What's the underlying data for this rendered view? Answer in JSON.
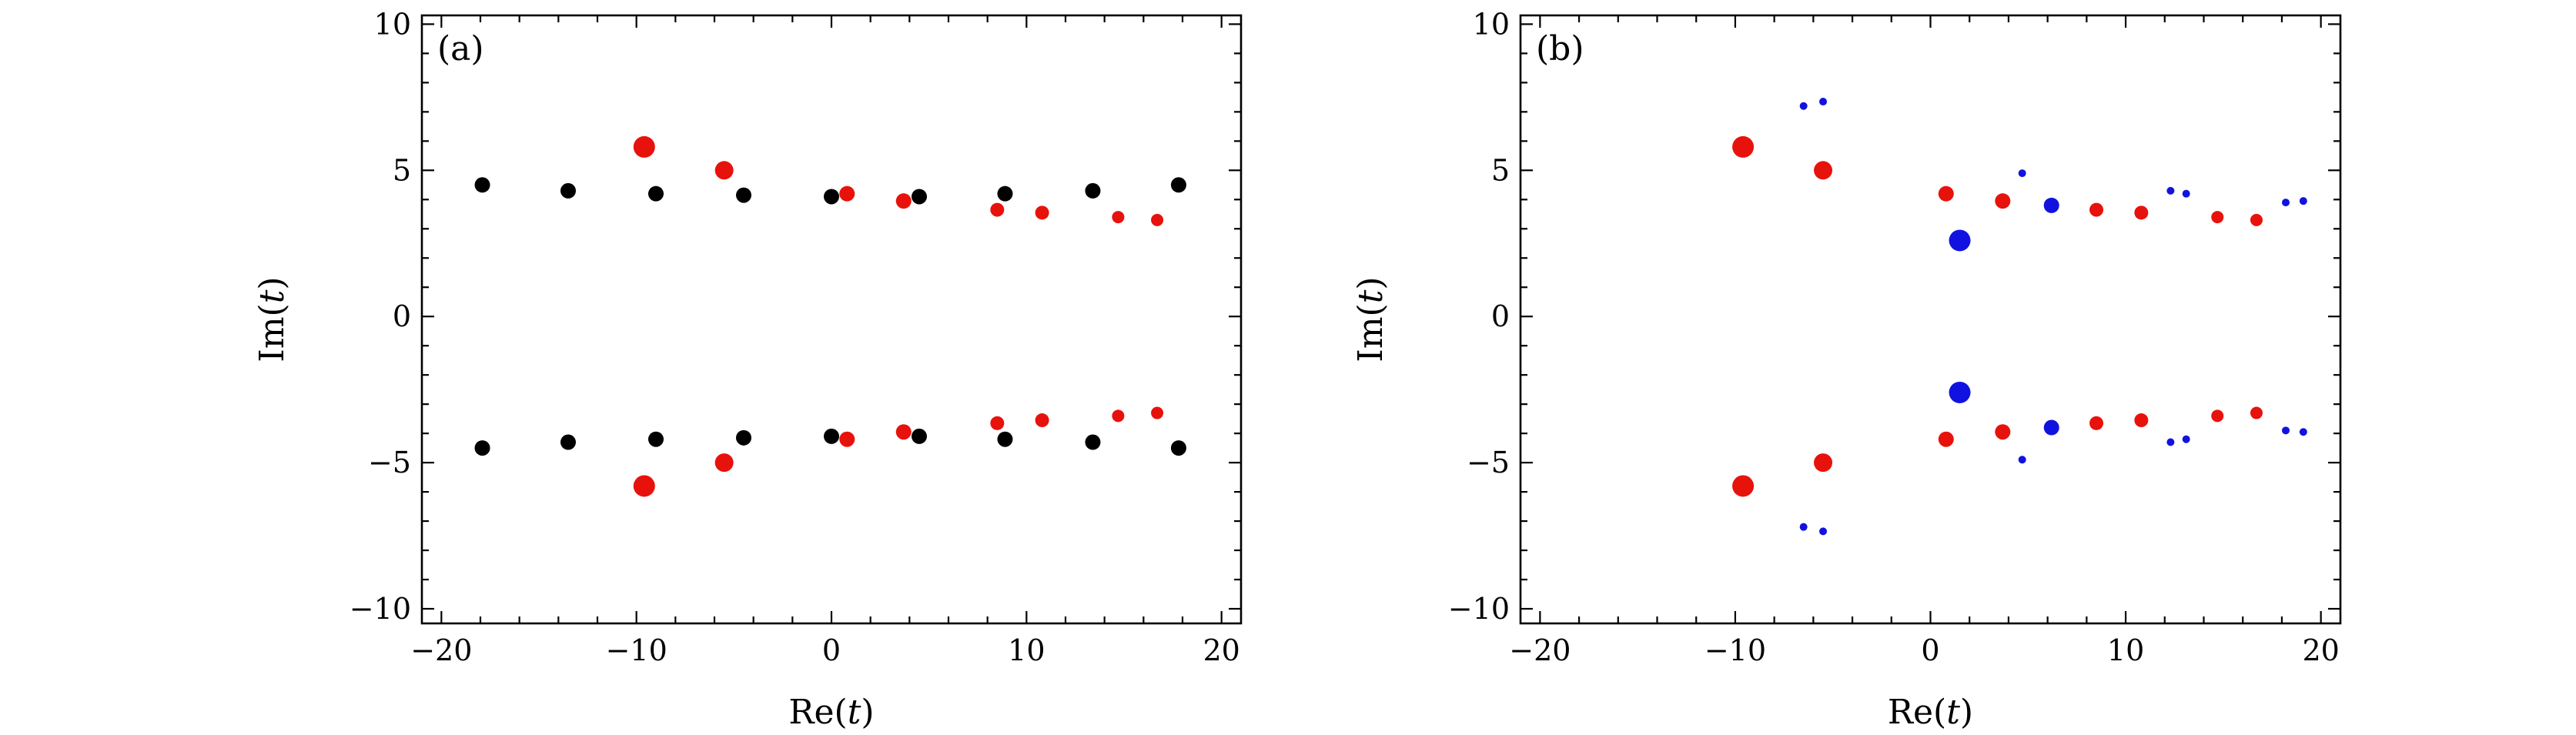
{
  "chart_data": [
    {
      "type": "scatter",
      "panel_label": "(a)",
      "xlabel": "Re(t)",
      "ylabel": "Im(t)",
      "xlim": [
        -21,
        21
      ],
      "ylim": [
        -10.5,
        10.3
      ],
      "xticks": [
        -20,
        -10,
        0,
        10,
        20
      ],
      "yticks": [
        -10,
        -5,
        0,
        5,
        10
      ],
      "xtick_labels": [
        "−20",
        "−10",
        "0",
        "10",
        "20"
      ],
      "ytick_labels": [
        "−10",
        "−5",
        "0",
        "5",
        "10"
      ],
      "grid": false,
      "series": [
        {
          "color": "#000000",
          "points": [
            {
              "x": -17.9,
              "y": 4.5,
              "size": "medium"
            },
            {
              "x": -13.5,
              "y": 4.3,
              "size": "medium"
            },
            {
              "x": -9.0,
              "y": 4.2,
              "size": "medium"
            },
            {
              "x": -4.5,
              "y": 4.15,
              "size": "medium"
            },
            {
              "x": 0.0,
              "y": 4.1,
              "size": "medium"
            },
            {
              "x": 4.5,
              "y": 4.1,
              "size": "medium"
            },
            {
              "x": 8.9,
              "y": 4.2,
              "size": "medium"
            },
            {
              "x": 13.4,
              "y": 4.3,
              "size": "medium"
            },
            {
              "x": 17.8,
              "y": 4.5,
              "size": "medium"
            },
            {
              "x": -17.9,
              "y": -4.5,
              "size": "medium"
            },
            {
              "x": -13.5,
              "y": -4.3,
              "size": "medium"
            },
            {
              "x": -9.0,
              "y": -4.2,
              "size": "medium"
            },
            {
              "x": -4.5,
              "y": -4.15,
              "size": "medium"
            },
            {
              "x": 0.0,
              "y": -4.1,
              "size": "medium"
            },
            {
              "x": 4.5,
              "y": -4.1,
              "size": "medium"
            },
            {
              "x": 8.9,
              "y": -4.2,
              "size": "medium"
            },
            {
              "x": 13.4,
              "y": -4.3,
              "size": "medium"
            },
            {
              "x": 17.8,
              "y": -4.5,
              "size": "medium"
            }
          ]
        },
        {
          "color": "#e8120c",
          "points": [
            {
              "x": -9.6,
              "y": 5.8,
              "size": "large"
            },
            {
              "x": -5.5,
              "y": 5.0,
              "size": "medium-large"
            },
            {
              "x": 0.8,
              "y": 4.2,
              "size": "medium"
            },
            {
              "x": 3.7,
              "y": 3.95,
              "size": "medium"
            },
            {
              "x": 8.5,
              "y": 3.65,
              "size": "small-medium"
            },
            {
              "x": 10.8,
              "y": 3.55,
              "size": "small-medium"
            },
            {
              "x": 14.7,
              "y": 3.4,
              "size": "small"
            },
            {
              "x": 16.7,
              "y": 3.3,
              "size": "small"
            },
            {
              "x": -9.6,
              "y": -5.8,
              "size": "large"
            },
            {
              "x": -5.5,
              "y": -5.0,
              "size": "medium-large"
            },
            {
              "x": 0.8,
              "y": -4.2,
              "size": "medium"
            },
            {
              "x": 3.7,
              "y": -3.95,
              "size": "medium"
            },
            {
              "x": 8.5,
              "y": -3.65,
              "size": "small-medium"
            },
            {
              "x": 10.8,
              "y": -3.55,
              "size": "small-medium"
            },
            {
              "x": 14.7,
              "y": -3.4,
              "size": "small"
            },
            {
              "x": 16.7,
              "y": -3.3,
              "size": "small"
            }
          ]
        }
      ]
    },
    {
      "type": "scatter",
      "panel_label": "(b)",
      "xlabel": "Re(t)",
      "ylabel": "Im(t)",
      "xlim": [
        -21,
        21
      ],
      "ylim": [
        -10.5,
        10.3
      ],
      "xticks": [
        -20,
        -10,
        0,
        10,
        20
      ],
      "yticks": [
        -10,
        -5,
        0,
        5,
        10
      ],
      "xtick_labels": [
        "−20",
        "−10",
        "0",
        "10",
        "20"
      ],
      "ytick_labels": [
        "−10",
        "−5",
        "0",
        "5",
        "10"
      ],
      "grid": false,
      "series": [
        {
          "color": "#e8120c",
          "points": [
            {
              "x": -9.6,
              "y": 5.8,
              "size": "large"
            },
            {
              "x": -5.5,
              "y": 5.0,
              "size": "medium-large"
            },
            {
              "x": 0.8,
              "y": 4.2,
              "size": "medium"
            },
            {
              "x": 3.7,
              "y": 3.95,
              "size": "medium"
            },
            {
              "x": 8.5,
              "y": 3.65,
              "size": "small-medium"
            },
            {
              "x": 10.8,
              "y": 3.55,
              "size": "small-medium"
            },
            {
              "x": 14.7,
              "y": 3.4,
              "size": "small"
            },
            {
              "x": 16.7,
              "y": 3.3,
              "size": "small"
            },
            {
              "x": -9.6,
              "y": -5.8,
              "size": "large"
            },
            {
              "x": -5.5,
              "y": -5.0,
              "size": "medium-large"
            },
            {
              "x": 0.8,
              "y": -4.2,
              "size": "medium"
            },
            {
              "x": 3.7,
              "y": -3.95,
              "size": "medium"
            },
            {
              "x": 8.5,
              "y": -3.65,
              "size": "small-medium"
            },
            {
              "x": 10.8,
              "y": -3.55,
              "size": "small-medium"
            },
            {
              "x": 14.7,
              "y": -3.4,
              "size": "small"
            },
            {
              "x": 16.7,
              "y": -3.3,
              "size": "small"
            }
          ]
        },
        {
          "color": "#1212e0",
          "points": [
            {
              "x": -6.5,
              "y": 7.2,
              "size": "tiny"
            },
            {
              "x": -5.5,
              "y": 7.35,
              "size": "tiny"
            },
            {
              "x": 4.7,
              "y": 4.9,
              "size": "tiny"
            },
            {
              "x": 1.5,
              "y": 2.6,
              "size": "large"
            },
            {
              "x": 6.2,
              "y": 3.8,
              "size": "medium"
            },
            {
              "x": 12.3,
              "y": 4.3,
              "size": "tiny"
            },
            {
              "x": 13.1,
              "y": 4.2,
              "size": "tiny"
            },
            {
              "x": 18.2,
              "y": 3.9,
              "size": "tiny"
            },
            {
              "x": 19.1,
              "y": 3.95,
              "size": "tiny"
            },
            {
              "x": -6.5,
              "y": -7.2,
              "size": "tiny"
            },
            {
              "x": -5.5,
              "y": -7.35,
              "size": "tiny"
            },
            {
              "x": 4.7,
              "y": -4.9,
              "size": "tiny"
            },
            {
              "x": 1.5,
              "y": -2.6,
              "size": "large"
            },
            {
              "x": 6.2,
              "y": -3.8,
              "size": "medium"
            },
            {
              "x": 12.3,
              "y": -4.3,
              "size": "tiny"
            },
            {
              "x": 13.1,
              "y": -4.2,
              "size": "tiny"
            },
            {
              "x": 18.2,
              "y": -3.9,
              "size": "tiny"
            },
            {
              "x": 19.1,
              "y": -3.95,
              "size": "tiny"
            }
          ]
        }
      ]
    }
  ]
}
